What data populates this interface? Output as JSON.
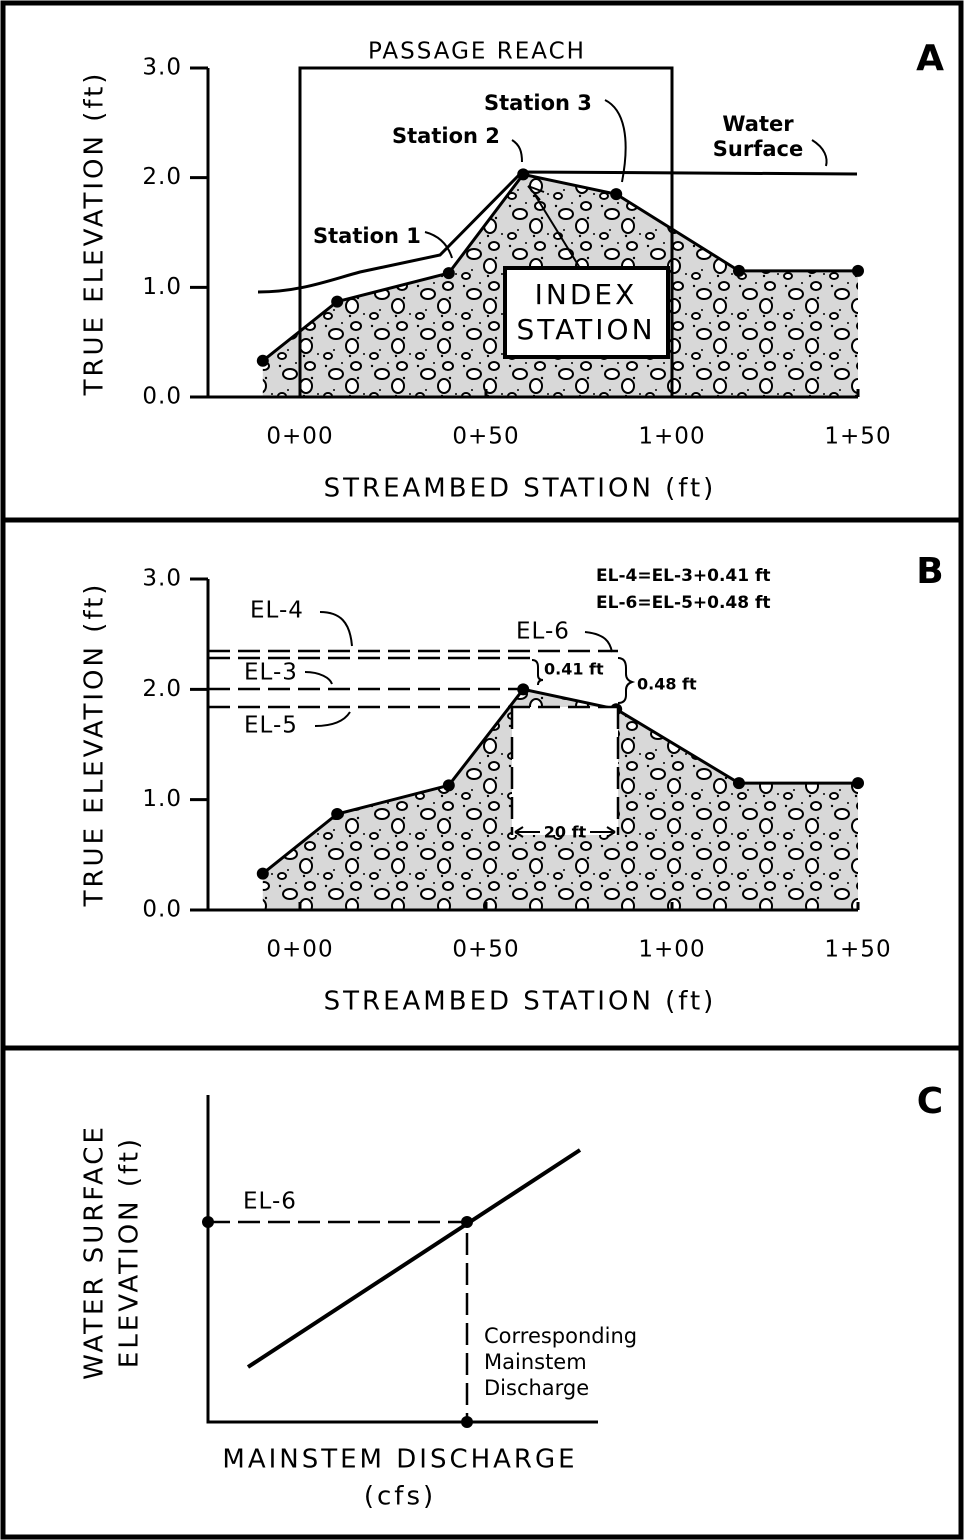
{
  "panels": [
    {
      "label": "A",
      "y_axis_title": "TRUE ELEVATION (ft)",
      "x_axis_title": "STREAMBED STATION (ft)",
      "yticks": [
        {
          "value": 0,
          "label": "0.0"
        },
        {
          "value": 1,
          "label": "1.0"
        },
        {
          "value": 2,
          "label": "2.0"
        },
        {
          "value": 3,
          "label": "3.0"
        }
      ],
      "xticks": [
        {
          "value": 0,
          "label": "0+00"
        },
        {
          "value": 50,
          "label": "0+50"
        },
        {
          "value": 100,
          "label": "1+00"
        },
        {
          "value": 150,
          "label": "1+50"
        }
      ],
      "profile": {
        "x": [
          -10,
          10,
          40,
          60,
          85,
          118,
          150
        ],
        "y": [
          0.33,
          0.87,
          1.13,
          2.03,
          1.85,
          1.15,
          1.15
        ]
      },
      "annotations": {
        "passage_reach": "PASSAGE REACH",
        "station_1": "Station 1",
        "station_2": "Station 2",
        "station_3": "Station 3",
        "water_surface": [
          "Water",
          "Surface"
        ],
        "index_station": [
          "INDEX",
          "STATION"
        ]
      }
    },
    {
      "label": "B",
      "y_axis_title": "TRUE ELEVATION (ft)",
      "x_axis_title": "STREAMBED STATION (ft)",
      "yticks": [
        {
          "value": 0,
          "label": "0.0"
        },
        {
          "value": 1,
          "label": "1.0"
        },
        {
          "value": 2,
          "label": "2.0"
        },
        {
          "value": 3,
          "label": "3.0"
        }
      ],
      "xticks": [
        {
          "value": 0,
          "label": "0+00"
        },
        {
          "value": 50,
          "label": "0+50"
        },
        {
          "value": 100,
          "label": "1+00"
        },
        {
          "value": 150,
          "label": "1+50"
        }
      ],
      "profile": {
        "x": [
          -10,
          10,
          40,
          60,
          85,
          118,
          150
        ],
        "y": [
          0.33,
          0.87,
          1.13,
          2.0,
          1.82,
          1.15,
          1.15
        ]
      },
      "annotations": {
        "el4": "EL-4",
        "el3": "EL-3",
        "el5": "EL-5",
        "el6": "EL-6",
        "eq1": "EL-4=EL-3+0.41 ft",
        "eq2": "EL-6=EL-5+0.48 ft",
        "d1": "0.41 ft",
        "d2": "0.48 ft",
        "w": "20 ft"
      }
    },
    {
      "label": "C",
      "y_axis_title": [
        "WATER SURFACE",
        "ELEVATION (ft)"
      ],
      "x_axis_title": [
        "MAINSTEM DISCHARGE",
        "(cfs)"
      ],
      "annotations": {
        "el6": "EL-6",
        "note": [
          "Corresponding",
          "Mainstem",
          "Discharge"
        ]
      }
    }
  ]
}
